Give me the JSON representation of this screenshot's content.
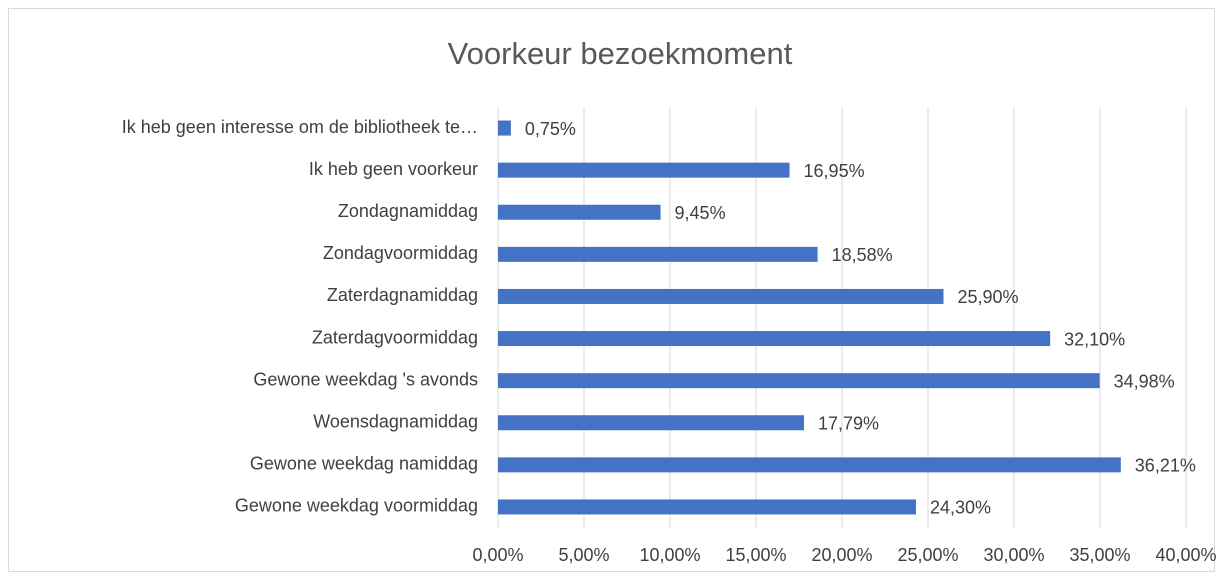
{
  "chart_data": {
    "type": "bar",
    "orientation": "horizontal",
    "title": "Voorkeur bezoekmoment",
    "categories": [
      "Ik heb geen interesse om de bibliotheek te…",
      "Ik heb geen voorkeur",
      "Zondagnamiddag",
      "Zondagvoormiddag",
      "Zaterdagnamiddag",
      "Zaterdagvoormiddag",
      "Gewone weekdag 's avonds",
      "Woensdagnamiddag",
      "Gewone weekdag namiddag",
      "Gewone weekdag voormiddag"
    ],
    "values": [
      0.75,
      16.95,
      9.45,
      18.58,
      25.9,
      32.1,
      34.98,
      17.79,
      36.21,
      24.3
    ],
    "value_labels": [
      "0,75%",
      "16,95%",
      "9,45%",
      "18,58%",
      "25,90%",
      "32,10%",
      "34,98%",
      "17,79%",
      "36,21%",
      "24,30%"
    ],
    "color": "#4472c4",
    "xlim": [
      0,
      40
    ],
    "xticks": [
      {
        "value": 0,
        "label": "0,00%"
      },
      {
        "value": 5,
        "label": "5,00%"
      },
      {
        "value": 10,
        "label": "10,00%"
      },
      {
        "value": 15,
        "label": "15,00%"
      },
      {
        "value": 20,
        "label": "20,00%"
      },
      {
        "value": 25,
        "label": "25,00%"
      },
      {
        "value": 30,
        "label": "30,00%"
      },
      {
        "value": 35,
        "label": "35,00%"
      },
      {
        "value": 40,
        "label": "40,00%"
      }
    ],
    "grid": true
  }
}
